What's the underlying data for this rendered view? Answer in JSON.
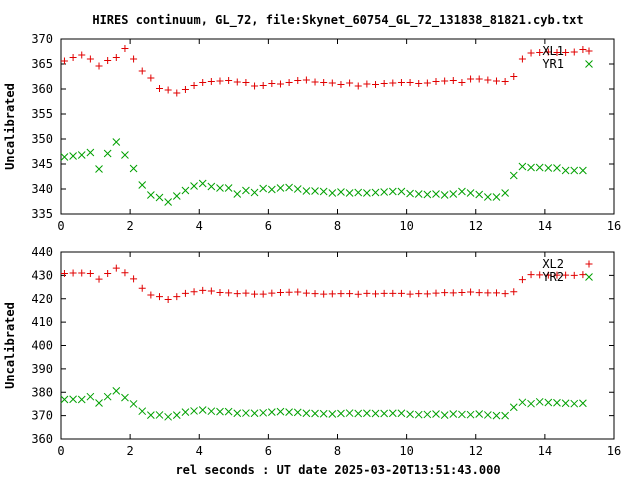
{
  "figure": {
    "title": "HIRES continuum, GL_72, file:Skynet_60754_GL_72_131838_81821.cyb.txt",
    "xlabel": "rel seconds : UT date 2025-03-20T13:51:43.000"
  },
  "chart_data": [
    {
      "type": "scatter",
      "ylabel": "Uncalibrated",
      "xlim": [
        0,
        16
      ],
      "ylim": [
        335,
        370
      ],
      "xticks": [
        0,
        2,
        4,
        6,
        8,
        10,
        12,
        14,
        16
      ],
      "yticks": [
        335,
        340,
        345,
        350,
        355,
        360,
        365,
        370
      ],
      "grid": false,
      "legend": "top-right",
      "x": [
        0.1,
        0.35,
        0.6,
        0.85,
        1.1,
        1.35,
        1.6,
        1.85,
        2.1,
        2.35,
        2.6,
        2.85,
        3.1,
        3.35,
        3.6,
        3.85,
        4.1,
        4.35,
        4.6,
        4.85,
        5.1,
        5.35,
        5.6,
        5.85,
        6.1,
        6.35,
        6.6,
        6.85,
        7.1,
        7.35,
        7.6,
        7.85,
        8.1,
        8.35,
        8.6,
        8.85,
        9.1,
        9.35,
        9.6,
        9.85,
        10.1,
        10.35,
        10.6,
        10.85,
        11.1,
        11.35,
        11.6,
        11.85,
        12.1,
        12.35,
        12.6,
        12.85,
        13.1,
        13.35,
        13.6,
        13.85,
        14.1,
        14.35,
        14.6,
        14.85,
        15.1
      ],
      "series": [
        {
          "name": "XL1",
          "marker": "plus",
          "color": "#e00000",
          "values": [
            365.6,
            366.3,
            366.8,
            366.0,
            364.6,
            365.7,
            366.3,
            368.1,
            366.0,
            363.6,
            362.2,
            360.1,
            359.8,
            359.2,
            359.9,
            360.7,
            361.3,
            361.5,
            361.6,
            361.7,
            361.4,
            361.3,
            360.6,
            360.7,
            361.1,
            361.0,
            361.3,
            361.7,
            361.8,
            361.4,
            361.3,
            361.2,
            360.9,
            361.2,
            360.6,
            361.0,
            360.9,
            361.1,
            361.2,
            361.3,
            361.3,
            361.1,
            361.2,
            361.5,
            361.6,
            361.7,
            361.3,
            362.0,
            362.0,
            361.8,
            361.6,
            361.5,
            362.5,
            366.0,
            367.2,
            367.3,
            367.4,
            367.3,
            367.3,
            367.4,
            367.9
          ]
        },
        {
          "name": "YR1",
          "marker": "cross",
          "color": "#00a000",
          "values": [
            346.4,
            346.6,
            346.8,
            347.3,
            344.0,
            347.1,
            349.4,
            346.8,
            344.1,
            340.8,
            338.8,
            338.3,
            337.4,
            338.6,
            339.7,
            340.6,
            341.1,
            340.5,
            340.2,
            340.2,
            339.0,
            339.7,
            339.3,
            340.1,
            339.9,
            340.2,
            340.3,
            340.0,
            339.6,
            339.6,
            339.5,
            339.2,
            339.4,
            339.2,
            339.3,
            339.2,
            339.3,
            339.4,
            339.5,
            339.5,
            339.1,
            339.0,
            338.9,
            339.0,
            338.8,
            339.0,
            339.5,
            339.2,
            338.9,
            338.4,
            338.4,
            339.2,
            342.7,
            344.5,
            344.3,
            344.3,
            344.2,
            344.2,
            343.7,
            343.7,
            343.7
          ]
        }
      ]
    },
    {
      "type": "scatter",
      "ylabel": "Uncalibrated",
      "xlim": [
        0,
        16
      ],
      "ylim": [
        360,
        440
      ],
      "xticks": [
        0,
        2,
        4,
        6,
        8,
        10,
        12,
        14,
        16
      ],
      "yticks": [
        360,
        370,
        380,
        390,
        400,
        410,
        420,
        430,
        440
      ],
      "grid": false,
      "legend": "top-right",
      "x": [
        0.1,
        0.35,
        0.6,
        0.85,
        1.1,
        1.35,
        1.6,
        1.85,
        2.1,
        2.35,
        2.6,
        2.85,
        3.1,
        3.35,
        3.6,
        3.85,
        4.1,
        4.35,
        4.6,
        4.85,
        5.1,
        5.35,
        5.6,
        5.85,
        6.1,
        6.35,
        6.6,
        6.85,
        7.1,
        7.35,
        7.6,
        7.85,
        8.1,
        8.35,
        8.6,
        8.85,
        9.1,
        9.35,
        9.6,
        9.85,
        10.1,
        10.35,
        10.6,
        10.85,
        11.1,
        11.35,
        11.6,
        11.85,
        12.1,
        12.35,
        12.6,
        12.85,
        13.1,
        13.35,
        13.6,
        13.85,
        14.1,
        14.35,
        14.6,
        14.85,
        15.1
      ],
      "series": [
        {
          "name": "XL2",
          "marker": "plus",
          "color": "#e00000",
          "values": [
            430.8,
            431.0,
            431.0,
            430.8,
            428.4,
            430.8,
            433.1,
            431.1,
            428.5,
            424.5,
            421.6,
            420.9,
            419.7,
            420.9,
            422.3,
            423.0,
            423.6,
            423.3,
            422.7,
            422.5,
            422.2,
            422.4,
            422.0,
            422.0,
            422.4,
            422.7,
            422.8,
            422.9,
            422.4,
            422.2,
            422.0,
            422.1,
            422.2,
            422.2,
            421.9,
            422.3,
            422.1,
            422.3,
            422.3,
            422.3,
            422.0,
            422.2,
            422.1,
            422.4,
            422.6,
            422.5,
            422.7,
            422.9,
            422.6,
            422.5,
            422.5,
            422.2,
            423.0,
            428.2,
            430.3,
            430.2,
            430.1,
            430.1,
            430.1,
            430.0,
            430.3
          ]
        },
        {
          "name": "YR2",
          "marker": "cross",
          "color": "#00a000",
          "values": [
            376.9,
            377.0,
            376.9,
            378.1,
            375.4,
            378.1,
            380.6,
            377.7,
            375.0,
            371.9,
            370.2,
            370.3,
            369.5,
            370.2,
            371.5,
            372.0,
            372.4,
            371.9,
            371.7,
            371.7,
            371.0,
            371.1,
            371.0,
            371.2,
            371.5,
            371.7,
            371.5,
            371.4,
            371.0,
            370.9,
            370.8,
            370.7,
            370.9,
            371.1,
            370.9,
            371.0,
            370.9,
            370.9,
            371.0,
            371.0,
            370.6,
            370.4,
            370.5,
            370.7,
            370.2,
            370.7,
            370.5,
            370.4,
            370.7,
            370.3,
            370.0,
            370.0,
            373.6,
            375.7,
            375.1,
            375.9,
            375.6,
            375.5,
            375.3,
            375.1,
            375.3
          ]
        }
      ]
    }
  ]
}
